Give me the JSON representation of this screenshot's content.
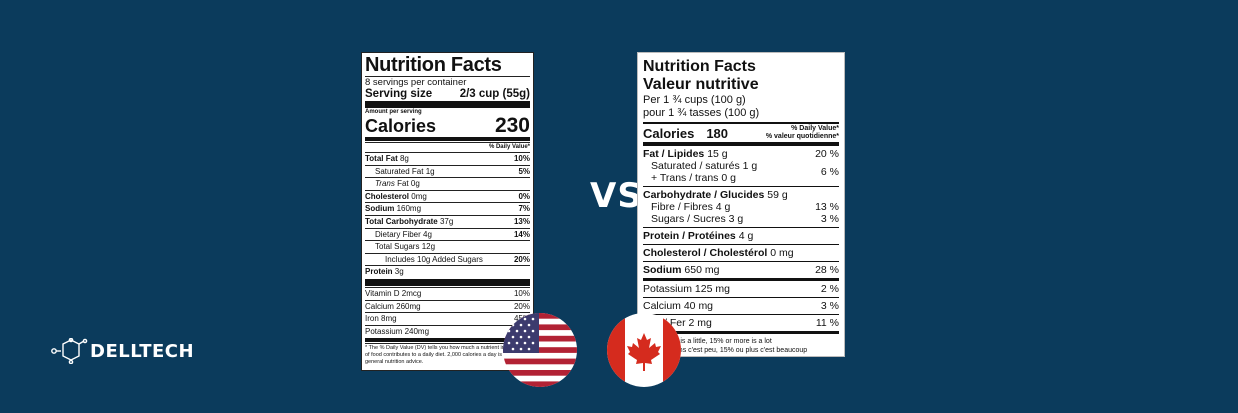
{
  "us_label": {
    "title": "Nutrition Facts",
    "servings": "8 servings per container",
    "serving_size_label": "Serving size",
    "serving_size_value": "2/3 cup (55g)",
    "amount_per_serving": "Amount per serving",
    "calories_label": "Calories",
    "calories_value": "230",
    "dv_header": "% Daily Value*",
    "rows": [
      {
        "label": "Total Fat 8g",
        "value": "10%"
      },
      {
        "label": "Saturated Fat 1g",
        "value": "5%"
      },
      {
        "label": "Trans Fat 0g",
        "value": ""
      },
      {
        "label": "Cholesterol 0mg",
        "value": "0%"
      },
      {
        "label": "Sodium 160mg",
        "value": "7%"
      },
      {
        "label": "Total Carbohydrate 37g",
        "value": "13%"
      },
      {
        "label": "Dietary Fiber 4g",
        "value": "14%"
      },
      {
        "label": "Total Sugars 12g",
        "value": ""
      },
      {
        "label": "Includes 10g Added Sugars",
        "value": "20%"
      },
      {
        "label": "Protein 3g",
        "value": ""
      }
    ],
    "minerals": [
      {
        "label": "Vitamin D 2mcg",
        "value": "10%"
      },
      {
        "label": "Calcium 260mg",
        "value": "20%"
      },
      {
        "label": "Iron 8mg",
        "value": "45%"
      },
      {
        "label": "Potassium 240mg",
        "value": "6%"
      }
    ],
    "footnote": "* The % Daily Value (DV) tells you how much a nutrient in a serving of food contributes to a daily diet. 2,000 calories a day is used for general nutrition advice."
  },
  "vs_text": "VS",
  "ca_label": {
    "title_en": "Nutrition Facts",
    "title_fr": "Valeur nutritive",
    "per_en": "Per 1 ¾ cups (100 g)",
    "per_fr": "pour 1 ¾ tasses (100 g)",
    "calories_label": "Calories",
    "calories_value": "180",
    "dv_en": "% Daily Value*",
    "dv_fr": "% valeur quotidienne*",
    "fat": {
      "label": "Fat / Lipides",
      "amount": "15 g",
      "value": "20 %"
    },
    "saturated": "Saturated / saturés 1 g",
    "trans": "+ Trans / trans 0 g",
    "sat_trans_value": "6 %",
    "carb": {
      "label": "Carbohydrate / Glucides",
      "amount": "59 g"
    },
    "fibre": {
      "label": "Fibre / Fibres 4 g",
      "value": "13 %"
    },
    "sugars": {
      "label": "Sugars / Sucres  3 g",
      "value": "3 %"
    },
    "protein": {
      "label": "Protein / Protéines",
      "amount": "4 g"
    },
    "cholesterol": {
      "label": "Cholesterol / Cholestérol",
      "amount": "0 mg"
    },
    "sodium": {
      "label": "Sodium",
      "amount": "650 mg",
      "value": "28 %"
    },
    "potassium": {
      "label": "Potassium 125 mg",
      "value": "2 %"
    },
    "calcium": {
      "label": "Calcium 40 mg",
      "value": "3 %"
    },
    "iron": {
      "label": "Iron / Fer 2 mg",
      "value": "11 %"
    },
    "foot_en": "*5% or less is a little, 15% or more is a lot",
    "foot_fr": "*5% ou moins c'est peu, 15% ou plus c'est beaucoup"
  },
  "logo_text": "DELLTECH",
  "colors": {
    "background": "#0b3b5c",
    "us_red": "#b22234",
    "us_blue": "#3c3b6e",
    "ca_red": "#d52b1e"
  }
}
